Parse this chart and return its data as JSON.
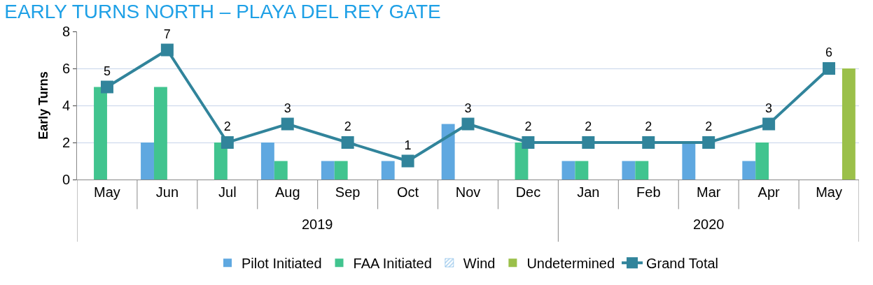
{
  "chart_data": {
    "type": "bar",
    "title": "EARLY TURNS NORTH – PLAYA DEL REY GATE",
    "ylabel": "Early Turns",
    "categories": [
      "May",
      "Jun",
      "Jul",
      "Aug",
      "Sep",
      "Oct",
      "Nov",
      "Dec",
      "Jan",
      "Feb",
      "Mar",
      "Apr",
      "May"
    ],
    "annotations": [
      "2019",
      "2020"
    ],
    "series": [
      {
        "name": "Pilot Initiated",
        "color": "#5fa8e0",
        "values": [
          null,
          2,
          null,
          2,
          1,
          1,
          3,
          null,
          1,
          1,
          2,
          1,
          null
        ]
      },
      {
        "name": "FAA Initiated",
        "color": "#41c48f",
        "values": [
          5,
          5,
          2,
          1,
          1,
          null,
          null,
          2,
          1,
          1,
          null,
          2,
          null
        ]
      },
      {
        "name": "Wind",
        "color": "#5fa8e0",
        "values": [
          null,
          null,
          null,
          null,
          null,
          null,
          null,
          null,
          null,
          null,
          null,
          null,
          null
        ]
      },
      {
        "name": "Undetermined",
        "color": "#9bc04a",
        "values": [
          null,
          null,
          null,
          null,
          null,
          null,
          null,
          null,
          null,
          null,
          null,
          null,
          6
        ]
      },
      {
        "name": "Grand Total",
        "type": "line",
        "color": "#31849b",
        "marker": "square",
        "values": [
          5,
          7,
          2,
          3,
          2,
          1,
          3,
          2,
          2,
          2,
          2,
          3,
          6
        ],
        "value_labels": [
          "5",
          "7",
          "2",
          "3",
          "2",
          "1",
          "3",
          "2",
          "2",
          "2",
          "2",
          "3",
          "6"
        ]
      }
    ],
    "ylim": [
      0,
      8
    ],
    "yticks": [
      0,
      2,
      4,
      6,
      8
    ],
    "grid": "y",
    "legend": "bottom"
  }
}
